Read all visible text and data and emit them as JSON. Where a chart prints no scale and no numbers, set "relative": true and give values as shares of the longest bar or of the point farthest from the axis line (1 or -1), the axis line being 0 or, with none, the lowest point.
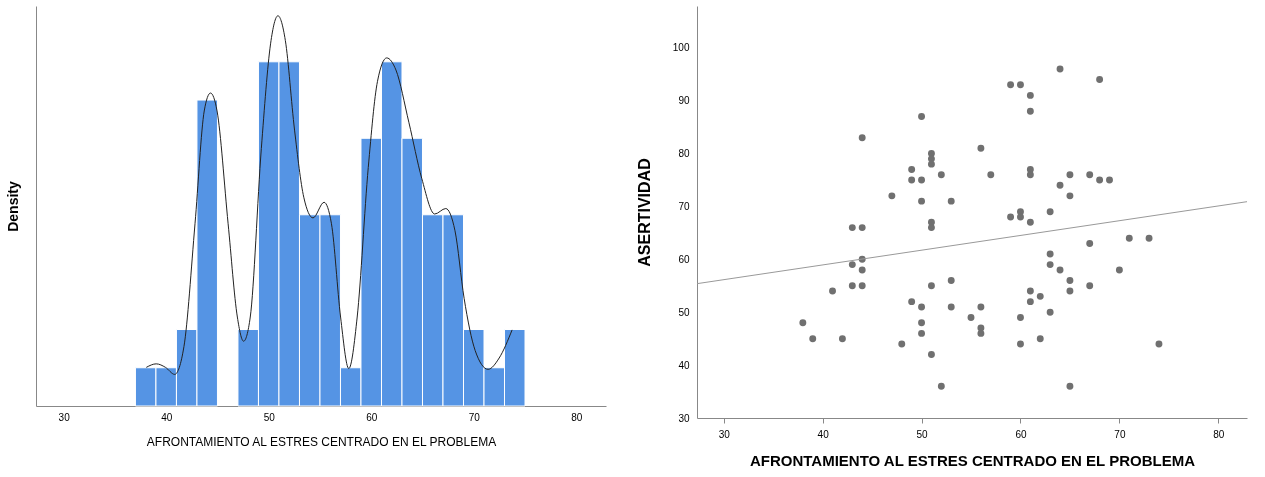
{
  "chart_data": [
    {
      "type": "histogram",
      "relative": true,
      "xlabel": "AFRONTAMIENTO AL ESTRES CENTRADO EN EL PROBLEMA",
      "ylabel": "Density",
      "xlim": [
        27.3,
        82.9
      ],
      "xticks": [
        30,
        40,
        50,
        60,
        70,
        80
      ],
      "tick_labels": "x",
      "series": [
        {
          "color": "#5594e4",
          "bins": [
            37,
            39,
            41,
            43,
            45,
            47,
            49,
            51,
            53,
            55,
            57,
            59,
            61,
            63,
            65,
            67,
            69,
            71,
            73,
            75
          ],
          "values": [
            0.098,
            0.098,
            0.196,
            0.784,
            0,
            0.196,
            0.882,
            0.882,
            0.49,
            0.49,
            0.098,
            0.686,
            0.882,
            0.686,
            0.49,
            0.49,
            0.196,
            0.098,
            0.196
          ]
        },
        {
          "type": "line",
          "color": "#222222",
          "x": [
            38.06,
            39.03,
            39.93,
            40.83,
            41.73,
            42.81,
            43.71,
            44.32,
            44.96,
            46.04,
            46.94,
            47.55,
            48.2,
            49.28,
            50.18,
            50.9,
            51.62,
            52.52,
            53.42,
            54.32,
            55.4,
            56.12,
            57.01,
            57.81,
            58.63,
            59.71,
            60.61,
            61.51,
            62.41,
            63.67,
            64.93,
            66.19,
            67.27,
            68.17,
            69.06,
            70.14,
            71.4,
            72.48,
            73.74
          ],
          "values": [
            0.099,
            0.108,
            0.099,
            0.081,
            0.152,
            0.467,
            0.756,
            0.802,
            0.756,
            0.467,
            0.228,
            0.166,
            0.228,
            0.66,
            0.928,
            1,
            0.937,
            0.707,
            0.535,
            0.482,
            0.522,
            0.467,
            0.228,
            0.096,
            0.228,
            0.611,
            0.832,
            0.892,
            0.861,
            0.727,
            0.583,
            0.492,
            0.506,
            0.449,
            0.276,
            0.142,
            0.094,
            0.123,
            0.195
          ]
        }
      ]
    },
    {
      "type": "scatter",
      "xlabel": "AFRONTAMIENTO AL ESTRES CENTRADO EN EL PROBLEMA",
      "ylabel": "ASERTIVIDAD",
      "xlim": [
        27.3,
        82.9
      ],
      "xticks": [
        30,
        40,
        50,
        60,
        70,
        80
      ],
      "ylim": [
        30,
        107.9
      ],
      "yticks": [
        30,
        40,
        50,
        60,
        70,
        80,
        90,
        100
      ],
      "series": [
        {
          "marker": "circle",
          "color": "#707070",
          "x": [
            38,
            39,
            41,
            42,
            43,
            43,
            43,
            44,
            44,
            44,
            44,
            44,
            47,
            48,
            49,
            49,
            49,
            50,
            50,
            50,
            50,
            50,
            50,
            51,
            51,
            51,
            51,
            51,
            51,
            51,
            52,
            52,
            53,
            53,
            53,
            55,
            56,
            56,
            56,
            56,
            57,
            59,
            59,
            60,
            60,
            60,
            60,
            60,
            61,
            61,
            61,
            61,
            61,
            61,
            61,
            62,
            62,
            63,
            63,
            63,
            63,
            64,
            64,
            64,
            65,
            65,
            65,
            65,
            65,
            67,
            67,
            67,
            68,
            68,
            69,
            70,
            71,
            73,
            74
          ],
          "values": [
            48,
            45,
            54,
            45,
            66,
            59,
            55,
            83,
            66,
            60,
            58,
            55,
            72,
            44,
            77,
            75,
            52,
            87,
            75,
            71,
            51,
            48,
            46,
            80,
            79,
            78,
            67,
            66,
            55,
            42,
            76,
            36,
            71,
            56,
            51,
            49,
            81,
            51,
            47,
            46,
            76,
            93,
            68,
            93,
            69,
            68,
            49,
            44,
            91,
            88,
            77,
            76,
            67,
            54,
            52,
            53,
            45,
            69,
            61,
            59,
            50,
            96,
            74,
            58,
            76,
            72,
            56,
            54,
            36,
            76,
            63,
            55,
            94,
            75,
            75,
            58,
            64,
            64,
            44
          ]
        },
        {
          "type": "line",
          "color": "#999999",
          "x": [
            27.3,
            82.9
          ],
          "values": [
            55.4,
            70.9
          ]
        }
      ]
    }
  ]
}
